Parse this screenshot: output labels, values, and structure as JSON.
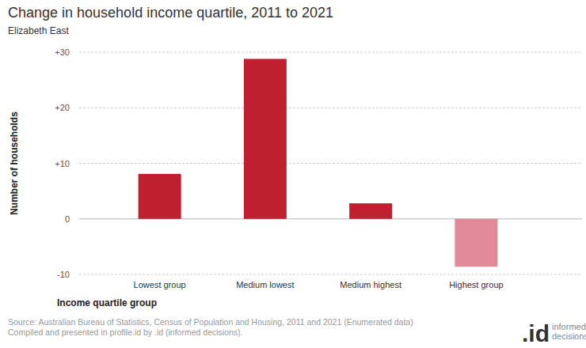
{
  "chart_data": {
    "type": "bar",
    "title": "Change in household income quartile, 2011 to 2021",
    "subtitle": "Elizabeth East",
    "x_label": "Income quartile group",
    "y_label": "Number of households",
    "categories": [
      "Lowest group",
      "Medium lowest",
      "Medium highest",
      "Highest group"
    ],
    "values": [
      8.1,
      28.8,
      2.8,
      -8.6
    ],
    "colors": [
      "#c01f2f",
      "#c01f2f",
      "#c01f2f",
      "#e08a98"
    ],
    "ylim": [
      -10,
      30
    ],
    "yticks": [
      -10,
      0,
      {
        "value": 10,
        "label": "+10"
      },
      {
        "value": 20,
        "label": "+20"
      },
      {
        "value": 30,
        "label": "+30"
      }
    ],
    "grid": true,
    "source": [
      "Source: Australian Bureau of Statistics, Census of Population and Housing, 2011 and 2021 (Enumerated data)",
      "Compiled and presented in profile.id by .id (informed decisions)."
    ],
    "logo": ".id",
    "logo_text": [
      "informed",
      "decisions"
    ]
  }
}
